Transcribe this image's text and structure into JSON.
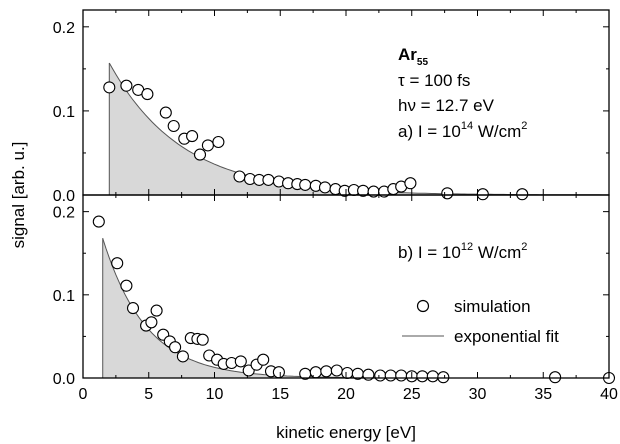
{
  "chart_data": [
    {
      "type": "scatter",
      "panel": "a",
      "xlim": [
        0,
        40
      ],
      "ylim": [
        0,
        0.22
      ],
      "x_ticks": [
        0,
        5,
        10,
        15,
        20,
        25,
        30,
        35,
        40
      ],
      "y_ticks": [
        0.0,
        0.1,
        0.2
      ],
      "y_tick_labels": [
        "0.0",
        "0.1",
        "0.2"
      ],
      "grid": false,
      "annotations": {
        "species": "Ar",
        "species_sub": "55",
        "tau": "τ = 100 fs",
        "photon": "hν = 12.7 eV",
        "intensity_prefix": "a) I = 10",
        "intensity_exp": "14",
        "intensity_unit": " W/cm",
        "intensity_unit_exp": "2"
      },
      "series": [
        {
          "name": "simulation",
          "marker": "open-circle",
          "x": [
            2.0,
            3.3,
            4.2,
            4.9,
            6.3,
            6.9,
            7.7,
            8.3,
            8.9,
            9.5,
            10.3,
            11.9,
            12.7,
            13.4,
            14.1,
            14.9,
            15.6,
            16.3,
            16.9,
            17.7,
            18.4,
            19.2,
            19.9,
            20.6,
            21.3,
            22.1,
            22.9,
            23.6,
            24.2,
            24.9,
            27.7,
            30.4,
            33.4
          ],
          "y": [
            0.128,
            0.13,
            0.125,
            0.12,
            0.098,
            0.082,
            0.067,
            0.07,
            0.048,
            0.059,
            0.063,
            0.022,
            0.019,
            0.018,
            0.018,
            0.016,
            0.014,
            0.013,
            0.012,
            0.011,
            0.009,
            0.007,
            0.005,
            0.006,
            0.005,
            0.004,
            0.004,
            0.007,
            0.01,
            0.014,
            0.002,
            0.001,
            0.001
          ]
        },
        {
          "name": "exponential fit",
          "type": "area",
          "x_start": 2.0,
          "amplitude": 0.157,
          "decay": 5.5
        }
      ]
    },
    {
      "type": "scatter",
      "panel": "b",
      "xlim": [
        0,
        40
      ],
      "ylim": [
        0,
        0.22
      ],
      "x_ticks": [
        0,
        5,
        10,
        15,
        20,
        25,
        30,
        35,
        40
      ],
      "x_tick_labels": [
        "0",
        "5",
        "10",
        "15",
        "20",
        "25",
        "30",
        "35",
        "40"
      ],
      "y_ticks": [
        0.0,
        0.1,
        0.2
      ],
      "y_tick_labels": [
        "0.0",
        "0.1",
        "0.2"
      ],
      "xlabel": "kinetic energy [eV]",
      "grid": false,
      "annotations": {
        "intensity_prefix": "b) I = 10",
        "intensity_exp": "12",
        "intensity_unit": " W/cm",
        "intensity_unit_exp": "2"
      },
      "legend": {
        "position": "right",
        "entries": [
          "simulation",
          "exponential fit"
        ]
      },
      "series": [
        {
          "name": "simulation",
          "marker": "open-circle",
          "x": [
            1.2,
            2.6,
            3.3,
            3.8,
            4.8,
            5.2,
            5.6,
            6.1,
            6.6,
            7.0,
            7.6,
            8.2,
            8.7,
            9.1,
            9.6,
            10.2,
            10.7,
            11.3,
            12.0,
            12.6,
            13.2,
            13.7,
            14.3,
            14.9,
            16.9,
            17.7,
            18.5,
            19.3,
            20.1,
            20.9,
            21.7,
            22.6,
            23.4,
            24.2,
            25.0,
            25.8,
            26.6,
            27.4,
            35.9,
            40.0
          ],
          "y": [
            0.188,
            0.138,
            0.111,
            0.084,
            0.063,
            0.067,
            0.081,
            0.052,
            0.044,
            0.037,
            0.026,
            0.048,
            0.047,
            0.046,
            0.027,
            0.022,
            0.017,
            0.018,
            0.02,
            0.009,
            0.016,
            0.022,
            0.008,
            0.007,
            0.005,
            0.007,
            0.008,
            0.009,
            0.006,
            0.005,
            0.004,
            0.003,
            0.003,
            0.003,
            0.002,
            0.002,
            0.002,
            0.001,
            0.001,
            0.0
          ]
        },
        {
          "name": "exponential fit",
          "type": "area",
          "x_start": 1.5,
          "amplitude": 0.168,
          "decay": 3.3
        }
      ]
    }
  ],
  "ylabel": "signal [arb. u.]",
  "colors": {
    "fill": "#d8d8d8",
    "line": "#555555",
    "marker_edge": "#000000"
  }
}
